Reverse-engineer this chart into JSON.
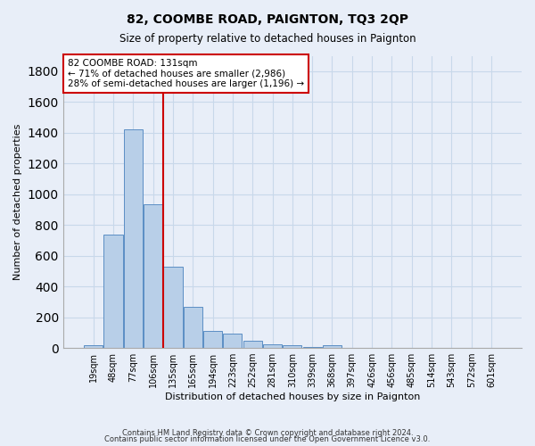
{
  "title": "82, COOMBE ROAD, PAIGNTON, TQ3 2QP",
  "subtitle": "Size of property relative to detached houses in Paignton",
  "xlabel": "Distribution of detached houses by size in Paignton",
  "ylabel": "Number of detached properties",
  "footer1": "Contains HM Land Registry data © Crown copyright and database right 2024.",
  "footer2": "Contains public sector information licensed under the Open Government Licence v3.0.",
  "bar_labels": [
    "19sqm",
    "48sqm",
    "77sqm",
    "106sqm",
    "135sqm",
    "165sqm",
    "194sqm",
    "223sqm",
    "252sqm",
    "281sqm",
    "310sqm",
    "339sqm",
    "368sqm",
    "397sqm",
    "426sqm",
    "456sqm",
    "485sqm",
    "514sqm",
    "543sqm",
    "572sqm",
    "601sqm"
  ],
  "bar_values": [
    20,
    735,
    1420,
    935,
    530,
    265,
    110,
    95,
    45,
    25,
    15,
    5,
    15,
    2,
    2,
    2,
    2,
    2,
    2,
    2,
    2
  ],
  "bar_color": "#b8cfe8",
  "bar_edge_color": "#5b8ec4",
  "property_line_x": 3.5,
  "annotation_label": "82 COOMBE ROAD: 131sqm",
  "annotation_line1": "← 71% of detached houses are smaller (2,986)",
  "annotation_line2": "28% of semi-detached houses are larger (1,196) →",
  "annotation_box_color": "#ffffff",
  "annotation_border_color": "#cc0000",
  "line_color": "#cc0000",
  "ylim": [
    0,
    1900
  ],
  "yticks": [
    0,
    200,
    400,
    600,
    800,
    1000,
    1200,
    1400,
    1600,
    1800
  ],
  "grid_color": "#c8d8ea",
  "background_color": "#e8eef8"
}
